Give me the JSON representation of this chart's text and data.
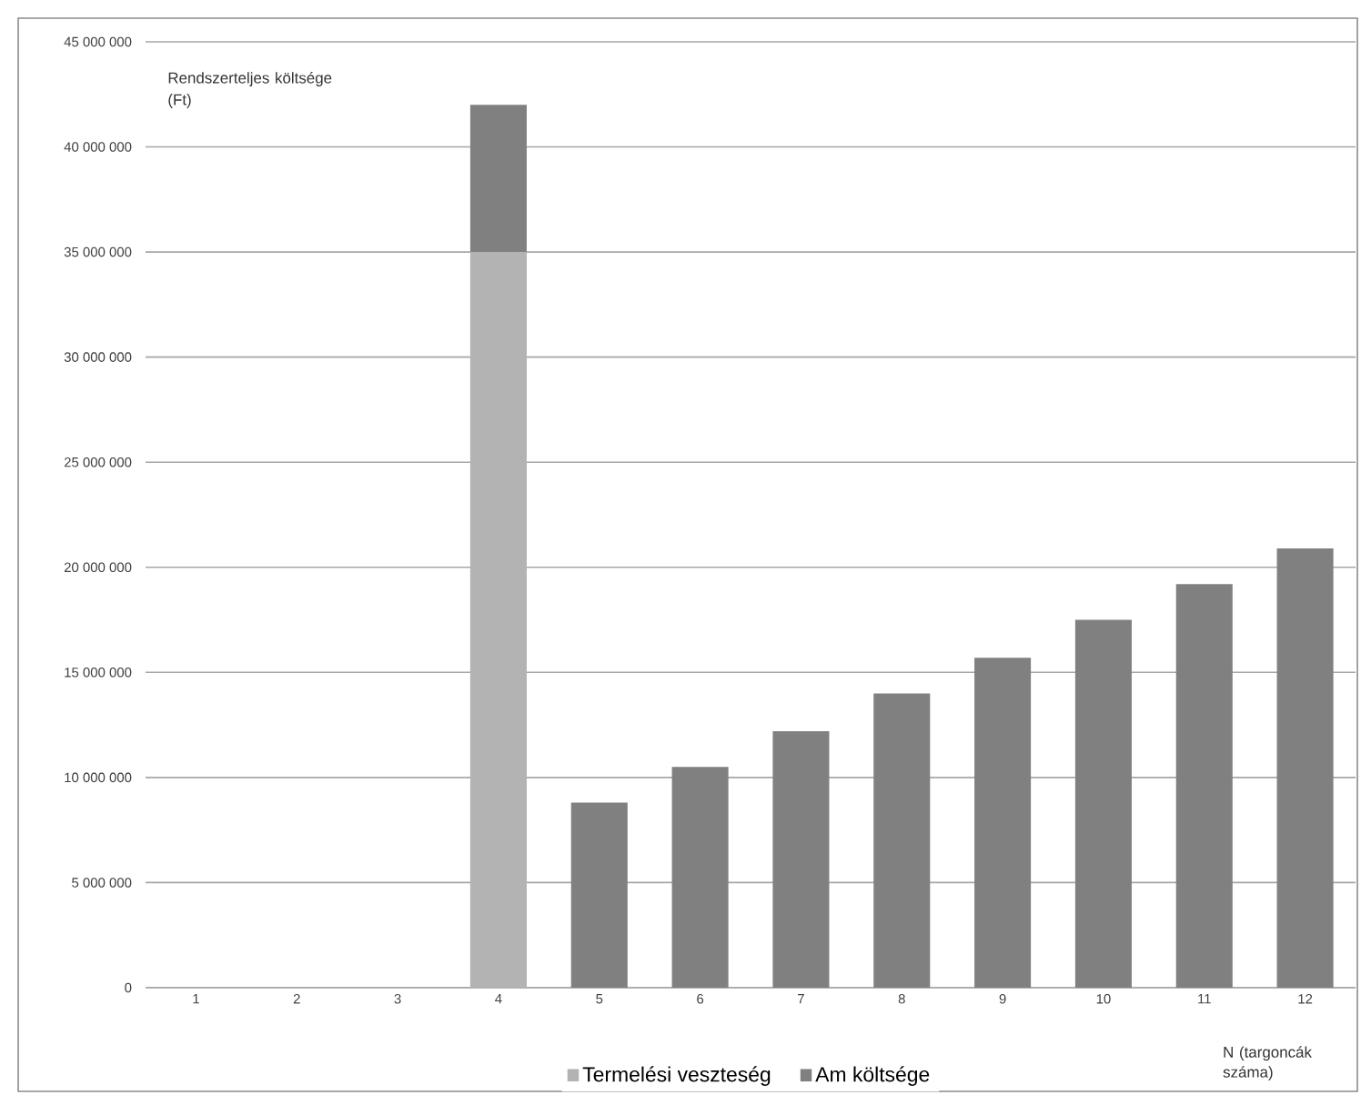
{
  "chart_data": {
    "type": "bar",
    "stacked": true,
    "ylabel": "Rendszerteljes költsége (Ft)",
    "xlabel": "N (targoncák száma)",
    "categories": [
      "1",
      "2",
      "3",
      "4",
      "5",
      "6",
      "7",
      "8",
      "9",
      "10",
      "11",
      "12"
    ],
    "series": [
      {
        "name": "Termelési veszteség",
        "color": "#b3b3b3",
        "values": [
          null,
          null,
          null,
          35000000,
          null,
          null,
          null,
          null,
          null,
          null,
          null,
          null
        ]
      },
      {
        "name": "Am költsége",
        "color": "#808080",
        "values": [
          null,
          null,
          null,
          7000000,
          8800000,
          10500000,
          12200000,
          14000000,
          15700000,
          17500000,
          19200000,
          20900000
        ]
      }
    ],
    "ylim": [
      0,
      45000000
    ],
    "yticks": [
      {
        "value": 0,
        "label": "0"
      },
      {
        "value": 5000000,
        "label": "5 000 000"
      },
      {
        "value": 10000000,
        "label": "10 000 000"
      },
      {
        "value": 15000000,
        "label": "15 000 000"
      },
      {
        "value": 20000000,
        "label": "20 000 000"
      },
      {
        "value": 25000000,
        "label": "25 000 000"
      },
      {
        "value": 30000000,
        "label": "30 000 000"
      },
      {
        "value": 35000000,
        "label": "35 000 000"
      },
      {
        "value": 40000000,
        "label": "40 000 000"
      },
      {
        "value": 45000000,
        "label": "45 000 000"
      }
    ],
    "grid": "y",
    "legend": "bottom"
  }
}
